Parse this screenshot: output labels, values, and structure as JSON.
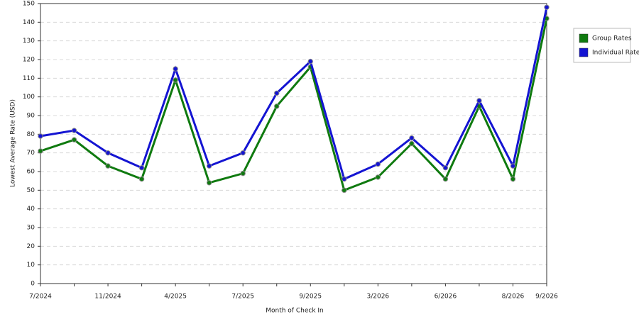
{
  "chart_data": {
    "type": "line",
    "x_label": "Month of Check In",
    "y_label": "Lowest Average Rate (USD)",
    "categories": [
      "7/2024",
      null,
      "11/2024",
      null,
      "4/2025",
      null,
      "7/2025",
      null,
      "9/2025",
      null,
      "3/2026",
      null,
      "6/2026",
      null,
      "8/2026",
      "9/2026"
    ],
    "series": [
      {
        "name": "Group Rates",
        "color": "#0f7a0f",
        "values": [
          71,
          77,
          63,
          56,
          109,
          54,
          59,
          95,
          116,
          50,
          57,
          75,
          56,
          95,
          56,
          142
        ]
      },
      {
        "name": "Individual Rates",
        "color": "#1414d2",
        "values": [
          79,
          82,
          70,
          62,
          115,
          63,
          70,
          102,
          119,
          56,
          64,
          78,
          62,
          98,
          63,
          148
        ]
      }
    ],
    "ylim": [
      0,
      150
    ],
    "yticks": [
      0,
      10,
      20,
      30,
      40,
      50,
      60,
      70,
      80,
      90,
      100,
      110,
      120,
      130,
      140,
      150
    ],
    "grid": true,
    "legend": "right"
  }
}
